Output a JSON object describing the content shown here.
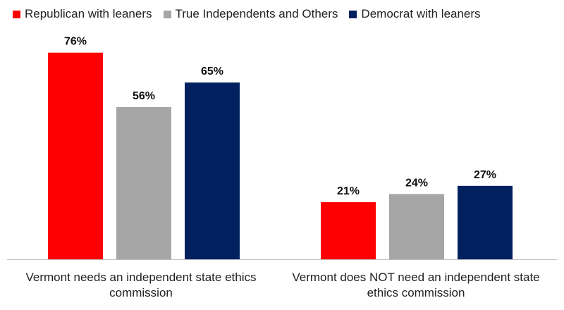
{
  "chart_data": {
    "type": "bar",
    "categories": [
      "Vermont needs an independent state ethics commission",
      "Vermont does NOT need an independent state ethics commission"
    ],
    "series": [
      {
        "name": "Republican with leaners",
        "values": [
          76,
          21
        ],
        "labels": [
          "76%",
          "21%"
        ],
        "color": "#ff0000"
      },
      {
        "name": "True Independents and Others",
        "values": [
          56,
          24
        ],
        "labels": [
          "56%",
          "24%"
        ],
        "color": "#a6a6a6"
      },
      {
        "name": "Democrat with leaners",
        "values": [
          65,
          27
        ],
        "labels": [
          "65%",
          "27%"
        ],
        "color": "#002060"
      }
    ],
    "ylim": [
      0,
      85
    ],
    "grid": false,
    "legend": "top"
  }
}
